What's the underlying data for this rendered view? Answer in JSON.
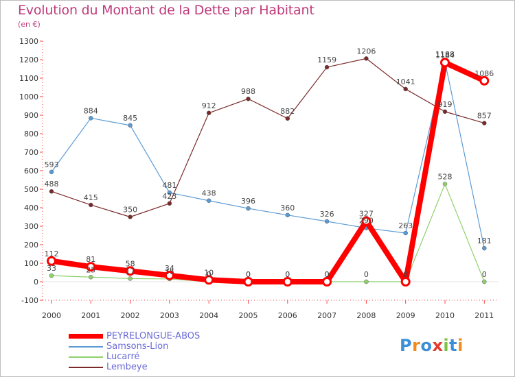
{
  "title": "Evolution du Montant de la Dette par Habitant",
  "subtitle": "(en €)",
  "brand": {
    "letters": [
      "P",
      "r",
      "o",
      "x",
      "i",
      "t",
      "i"
    ],
    "colors": [
      "#3a8fd8",
      "#f28a1c",
      "#3a8fd8",
      "#e33b2f",
      "#7cc242",
      "#3a8fd8",
      "#f28a1c"
    ]
  },
  "chart_data": {
    "type": "line",
    "title": "Evolution du Montant de la Dette par Habitant",
    "subtitle": "(en €)",
    "xlabel": "",
    "ylabel": "",
    "x": [
      "2000",
      "2001",
      "2002",
      "2003",
      "2004",
      "2005",
      "2006",
      "2007",
      "2008",
      "2009",
      "2010",
      "2011"
    ],
    "ylim": [
      -100,
      1300
    ],
    "yticks": [
      -100,
      0,
      100,
      200,
      300,
      400,
      500,
      600,
      700,
      800,
      900,
      1000,
      1100,
      1200,
      1300
    ],
    "grid": false,
    "legend_position": "bottom-left",
    "series": [
      {
        "name": "PEYRELONGUE-ABOS",
        "color": "#ff0000",
        "values": [
          112,
          81,
          58,
          34,
          10,
          0,
          0,
          0,
          327,
          0,
          1184,
          1086
        ],
        "labels": [
          "112",
          "81",
          "58",
          "34",
          "10",
          "0",
          "0",
          "0",
          "327",
          "0",
          "1184",
          "1086"
        ]
      },
      {
        "name": "Samsons-Lion",
        "color": "#5b9bd5",
        "values": [
          593,
          884,
          845,
          481,
          438,
          396,
          360,
          326,
          290,
          263,
          1188,
          181
        ],
        "labels": [
          "593",
          "884",
          "845",
          "481",
          "438",
          "396",
          "360",
          "326",
          "290",
          "263",
          "1188",
          "181"
        ]
      },
      {
        "name": "Lucarré",
        "color": "#8fd16a",
        "values": [
          33,
          25,
          17,
          15,
          0,
          0,
          0,
          0,
          0,
          0,
          528,
          0
        ],
        "labels": [
          "33",
          "25",
          "17",
          "15",
          "0",
          "0",
          "0",
          "0",
          "0",
          "0",
          "528",
          "0"
        ]
      },
      {
        "name": "Lembeye",
        "color": "#7a2a2a",
        "values": [
          488,
          415,
          350,
          423,
          912,
          988,
          882,
          1159,
          1206,
          1041,
          919,
          857
        ],
        "labels": [
          "488",
          "415",
          "350",
          "423",
          "912",
          "988",
          "882",
          "1159",
          "1206",
          "1041",
          "919",
          "857"
        ]
      }
    ]
  }
}
